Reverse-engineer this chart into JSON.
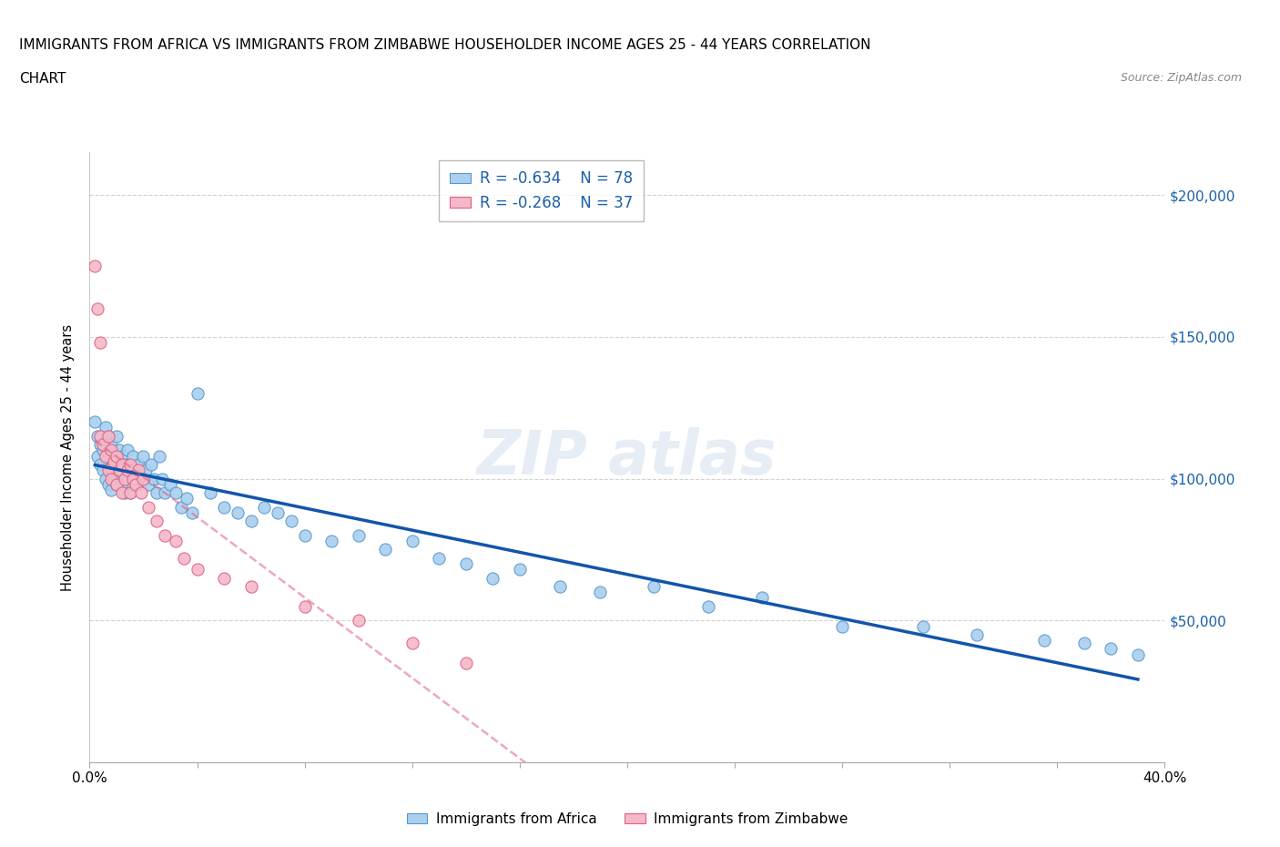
{
  "title_line1": "IMMIGRANTS FROM AFRICA VS IMMIGRANTS FROM ZIMBABWE HOUSEHOLDER INCOME AGES 25 - 44 YEARS CORRELATION",
  "title_line2": "CHART",
  "source_text": "Source: ZipAtlas.com",
  "ylabel": "Householder Income Ages 25 - 44 years",
  "xlim": [
    0.0,
    0.4
  ],
  "ylim": [
    0,
    215000
  ],
  "yticks": [
    0,
    50000,
    100000,
    150000,
    200000
  ],
  "xticks": [
    0.0,
    0.04,
    0.08,
    0.12,
    0.16,
    0.2,
    0.24,
    0.28,
    0.32,
    0.36,
    0.4
  ],
  "africa_color": "#aacfef",
  "africa_edge_color": "#5599cc",
  "zimbabwe_color": "#f5b8c8",
  "zimbabwe_edge_color": "#e06080",
  "trend_africa_color": "#1155aa",
  "trend_zimbabwe_color": "#e06080",
  "legend_text_color": "#1a5fa8",
  "r_africa": -0.634,
  "n_africa": 78,
  "r_zimbabwe": -0.268,
  "n_zimbabwe": 37,
  "africa_x": [
    0.002,
    0.003,
    0.003,
    0.004,
    0.004,
    0.005,
    0.005,
    0.006,
    0.006,
    0.007,
    0.007,
    0.007,
    0.008,
    0.008,
    0.008,
    0.009,
    0.009,
    0.01,
    0.01,
    0.01,
    0.011,
    0.011,
    0.012,
    0.012,
    0.013,
    0.013,
    0.014,
    0.014,
    0.015,
    0.015,
    0.016,
    0.016,
    0.017,
    0.018,
    0.019,
    0.02,
    0.021,
    0.022,
    0.023,
    0.024,
    0.025,
    0.026,
    0.027,
    0.028,
    0.03,
    0.032,
    0.034,
    0.036,
    0.038,
    0.04,
    0.045,
    0.05,
    0.055,
    0.06,
    0.065,
    0.07,
    0.075,
    0.08,
    0.09,
    0.1,
    0.11,
    0.12,
    0.13,
    0.14,
    0.15,
    0.16,
    0.175,
    0.19,
    0.21,
    0.23,
    0.25,
    0.28,
    0.31,
    0.33,
    0.355,
    0.37,
    0.38,
    0.39
  ],
  "africa_y": [
    120000,
    115000,
    108000,
    112000,
    105000,
    110000,
    103000,
    118000,
    100000,
    108000,
    115000,
    98000,
    112000,
    104000,
    96000,
    108000,
    100000,
    115000,
    106000,
    98000,
    110000,
    103000,
    108000,
    100000,
    105000,
    95000,
    110000,
    100000,
    103000,
    95000,
    108000,
    98000,
    103000,
    105000,
    100000,
    108000,
    103000,
    98000,
    105000,
    100000,
    95000,
    108000,
    100000,
    95000,
    98000,
    95000,
    90000,
    93000,
    88000,
    130000,
    95000,
    90000,
    88000,
    85000,
    90000,
    88000,
    85000,
    80000,
    78000,
    80000,
    75000,
    78000,
    72000,
    70000,
    65000,
    68000,
    62000,
    60000,
    62000,
    55000,
    58000,
    48000,
    48000,
    45000,
    43000,
    42000,
    40000,
    38000
  ],
  "zimbabwe_x": [
    0.002,
    0.003,
    0.004,
    0.004,
    0.005,
    0.006,
    0.007,
    0.007,
    0.008,
    0.008,
    0.009,
    0.01,
    0.01,
    0.011,
    0.012,
    0.012,
    0.013,
    0.014,
    0.015,
    0.015,
    0.016,
    0.017,
    0.018,
    0.019,
    0.02,
    0.022,
    0.025,
    0.028,
    0.032,
    0.035,
    0.04,
    0.05,
    0.06,
    0.08,
    0.1,
    0.12,
    0.14
  ],
  "zimbabwe_y": [
    175000,
    160000,
    148000,
    115000,
    112000,
    108000,
    115000,
    103000,
    110000,
    100000,
    106000,
    108000,
    98000,
    103000,
    105000,
    95000,
    100000,
    103000,
    105000,
    95000,
    100000,
    98000,
    103000,
    95000,
    100000,
    90000,
    85000,
    80000,
    78000,
    72000,
    68000,
    65000,
    62000,
    55000,
    50000,
    42000,
    35000
  ]
}
